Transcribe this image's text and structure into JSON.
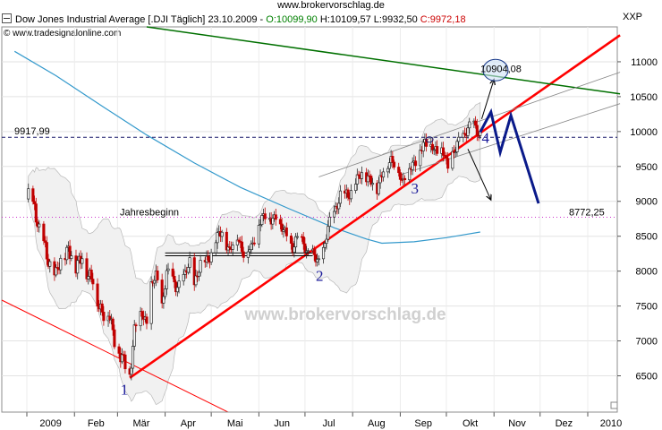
{
  "site_url": "www.brokervorschlag.de",
  "header": {
    "instrument": "Dow Jones Industrial Average [.DJI  Täglich]",
    "date": "23.10.2009",
    "open": "O:10099,90",
    "high": "H:10109,57",
    "low": "L:9932,50",
    "close": "C:9972,18"
  },
  "copyright": "© www.tradesignalonline.com",
  "currency_label": "XXP",
  "watermark": "www.brokervorschlag.de",
  "colors": {
    "up": "#2a2a2a",
    "down": "#c00000",
    "support_trendline": "#ff0000",
    "resistance_trendline": "#007000",
    "ma200": "#3399cc",
    "projection": "#0a1a8a",
    "year_open_line": "#cc33cc"
  },
  "chart_data": {
    "type": "candlestick",
    "title": "Dow Jones Industrial Average [.DJI  Täglich]",
    "x_ticks": [
      "2009",
      "Feb",
      "Mär",
      "Apr",
      "Mai",
      "Jun",
      "Jul",
      "Aug",
      "Sep",
      "Okt",
      "Nov",
      "Dez",
      "2010"
    ],
    "y_ticks": [
      6500,
      7000,
      7500,
      8000,
      8500,
      9000,
      9500,
      10000,
      10500,
      11000
    ],
    "ylim": [
      5980,
      11500
    ],
    "grid": true,
    "levels": [
      {
        "label": "9917,99",
        "value": 9918,
        "style": "dashed"
      },
      {
        "label": "Jahresbeginn",
        "value": 8772,
        "style": "dotted",
        "right_label": "8772,25"
      },
      {
        "label": "10904,08",
        "value": 10904
      }
    ],
    "wave_labels": [
      "1",
      "2",
      "3",
      "4"
    ],
    "close_path": [
      [
        "2009-01-02",
        9034
      ],
      [
        "2009-01-06",
        8952
      ],
      [
        "2009-01-09",
        8600
      ],
      [
        "2009-01-14",
        8200
      ],
      [
        "2009-01-20",
        7950
      ],
      [
        "2009-01-23",
        8100
      ],
      [
        "2009-01-28",
        8375
      ],
      [
        "2009-02-02",
        8000
      ],
      [
        "2009-02-06",
        8280
      ],
      [
        "2009-02-10",
        7890
      ],
      [
        "2009-02-13",
        7850
      ],
      [
        "2009-02-17",
        7550
      ],
      [
        "2009-02-20",
        7365
      ],
      [
        "2009-02-24",
        7350
      ],
      [
        "2009-02-27",
        7060
      ],
      [
        "2009-03-03",
        6750
      ],
      [
        "2009-03-06",
        6630
      ],
      [
        "2009-03-09",
        6547
      ],
      [
        "2009-03-12",
        7170
      ],
      [
        "2009-03-17",
        7395
      ],
      [
        "2009-03-20",
        7280
      ],
      [
        "2009-03-23",
        7775
      ],
      [
        "2009-03-26",
        7925
      ],
      [
        "2009-03-30",
        7520
      ],
      [
        "2009-04-02",
        7980
      ],
      [
        "2009-04-08",
        7790
      ],
      [
        "2009-04-14",
        7920
      ],
      [
        "2009-04-17",
        8130
      ],
      [
        "2009-04-20",
        7840
      ],
      [
        "2009-04-24",
        8080
      ],
      [
        "2009-04-29",
        8185
      ],
      [
        "2009-05-04",
        8425
      ],
      [
        "2009-05-08",
        8575
      ],
      [
        "2009-05-13",
        8285
      ],
      [
        "2009-05-18",
        8505
      ],
      [
        "2009-05-22",
        8280
      ],
      [
        "2009-05-27",
        8300
      ],
      [
        "2009-06-01",
        8720
      ],
      [
        "2009-06-05",
        8765
      ],
      [
        "2009-06-09",
        8765
      ],
      [
        "2009-06-12",
        8800
      ],
      [
        "2009-06-15",
        8610
      ],
      [
        "2009-06-19",
        8540
      ],
      [
        "2009-06-23",
        8320
      ],
      [
        "2009-06-26",
        8440
      ],
      [
        "2009-06-30",
        8450
      ],
      [
        "2009-07-02",
        8280
      ],
      [
        "2009-07-08",
        8180
      ],
      [
        "2009-07-10",
        8150
      ],
      [
        "2009-07-14",
        8360
      ],
      [
        "2009-07-16",
        8615
      ],
      [
        "2009-07-21",
        8915
      ],
      [
        "2009-07-24",
        9095
      ],
      [
        "2009-07-29",
        9070
      ],
      [
        "2009-08-03",
        9285
      ],
      [
        "2009-08-07",
        9370
      ],
      [
        "2009-08-12",
        9360
      ],
      [
        "2009-08-17",
        9135
      ],
      [
        "2009-08-21",
        9505
      ],
      [
        "2009-08-26",
        9545
      ],
      [
        "2009-08-31",
        9495
      ],
      [
        "2009-09-02",
        9280
      ],
      [
        "2009-09-08",
        9500
      ],
      [
        "2009-09-11",
        9605
      ],
      [
        "2009-09-16",
        9790
      ],
      [
        "2009-09-22",
        9830
      ],
      [
        "2009-09-25",
        9665
      ],
      [
        "2009-09-30",
        9710
      ],
      [
        "2009-10-02",
        9490
      ],
      [
        "2009-10-07",
        9725
      ],
      [
        "2009-10-09",
        9865
      ],
      [
        "2009-10-14",
        10015
      ],
      [
        "2009-10-19",
        10092
      ],
      [
        "2009-10-23",
        9972
      ]
    ],
    "moving_average_200": [
      [
        "2008-12-24",
        11150
      ],
      [
        "2009-01-20",
        10800
      ],
      [
        "2009-02-20",
        10350
      ],
      [
        "2009-03-20",
        9950
      ],
      [
        "2009-04-20",
        9550
      ],
      [
        "2009-05-20",
        9200
      ],
      [
        "2009-06-20",
        8900
      ],
      [
        "2009-07-20",
        8620
      ],
      [
        "2009-08-10",
        8460
      ],
      [
        "2009-08-20",
        8400
      ],
      [
        "2009-09-10",
        8420
      ],
      [
        "2009-10-01",
        8480
      ],
      [
        "2009-10-23",
        8560
      ]
    ],
    "support_trendline": [
      [
        "2009-03-09",
        6470
      ],
      [
        "2010-01-22",
        11380
      ]
    ],
    "resistance_trendline": [
      [
        "2009-03-20",
        11500
      ],
      [
        "2010-01-22",
        10540
      ]
    ],
    "projection_path": [
      [
        "2009-10-23",
        9990
      ],
      [
        "2009-10-30",
        10280
      ],
      [
        "2009-11-05",
        9700
      ],
      [
        "2009-11-12",
        10230
      ],
      [
        "2009-11-30",
        8970
      ]
    ]
  }
}
